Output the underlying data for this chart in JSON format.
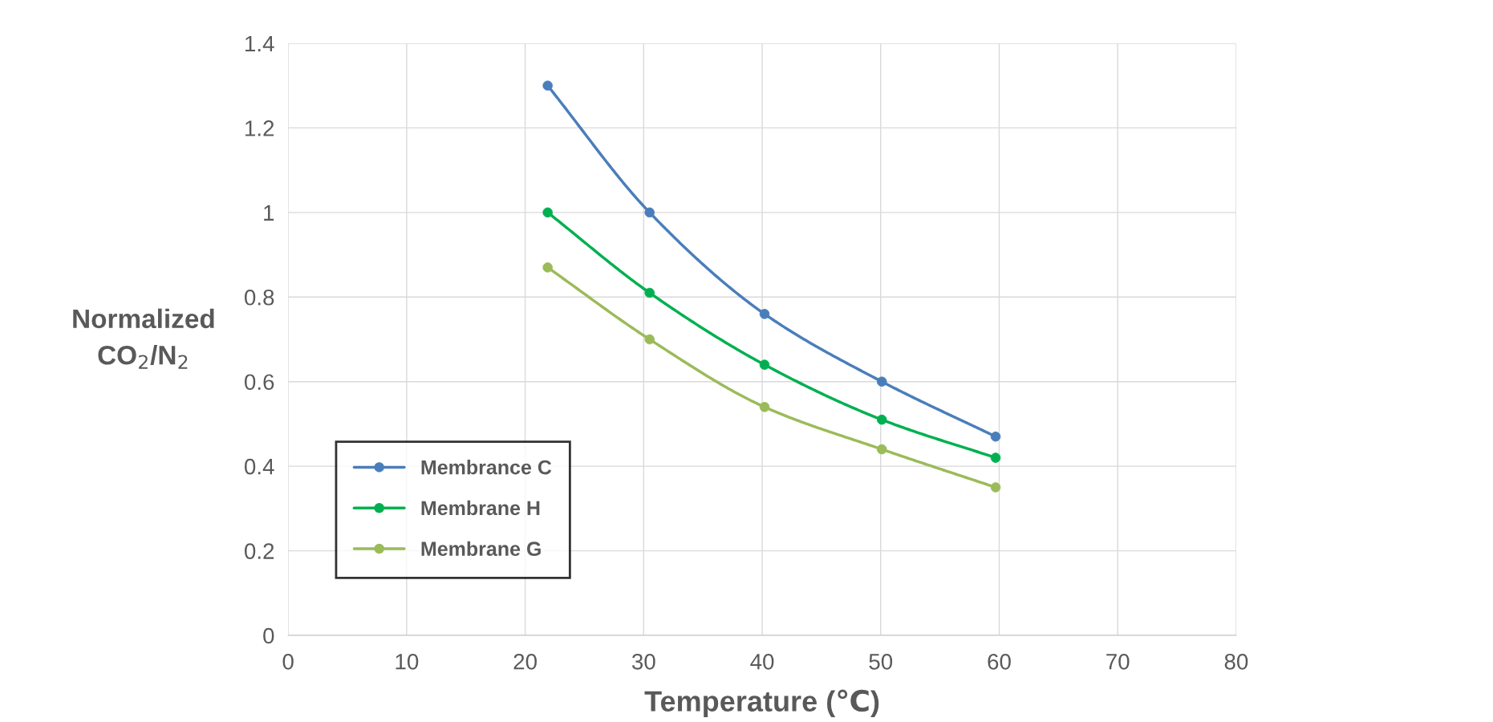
{
  "chart_data": {
    "type": "line",
    "xlabel": "Temperature (℃)",
    "ylabel": "Normalized\nCO$_{2}$/N$_{2}$",
    "x": [
      21.9,
      30.5,
      40.2,
      50.1,
      59.7
    ],
    "series": [
      {
        "name": "Membrance C",
        "color": "#4a7ebb",
        "values": [
          1.3,
          1.0,
          0.76,
          0.6,
          0.47
        ]
      },
      {
        "name": "Membrane H",
        "color": "#00b050",
        "values": [
          1.0,
          0.81,
          0.64,
          0.51,
          0.42
        ]
      },
      {
        "name": "Membrane G",
        "color": "#9bbb59",
        "values": [
          0.87,
          0.7,
          0.54,
          0.44,
          0.35
        ]
      }
    ],
    "xlim": [
      0,
      80
    ],
    "xticks": [
      0,
      10,
      20,
      30,
      40,
      50,
      60,
      70,
      80
    ],
    "ylim": [
      0,
      1.4
    ],
    "yticks": [
      0,
      0.2,
      0.4,
      0.6,
      0.8,
      1,
      1.2,
      1.4
    ],
    "grid": true,
    "legend": "bottom left",
    "marker": "circle",
    "line_style": "solid"
  }
}
